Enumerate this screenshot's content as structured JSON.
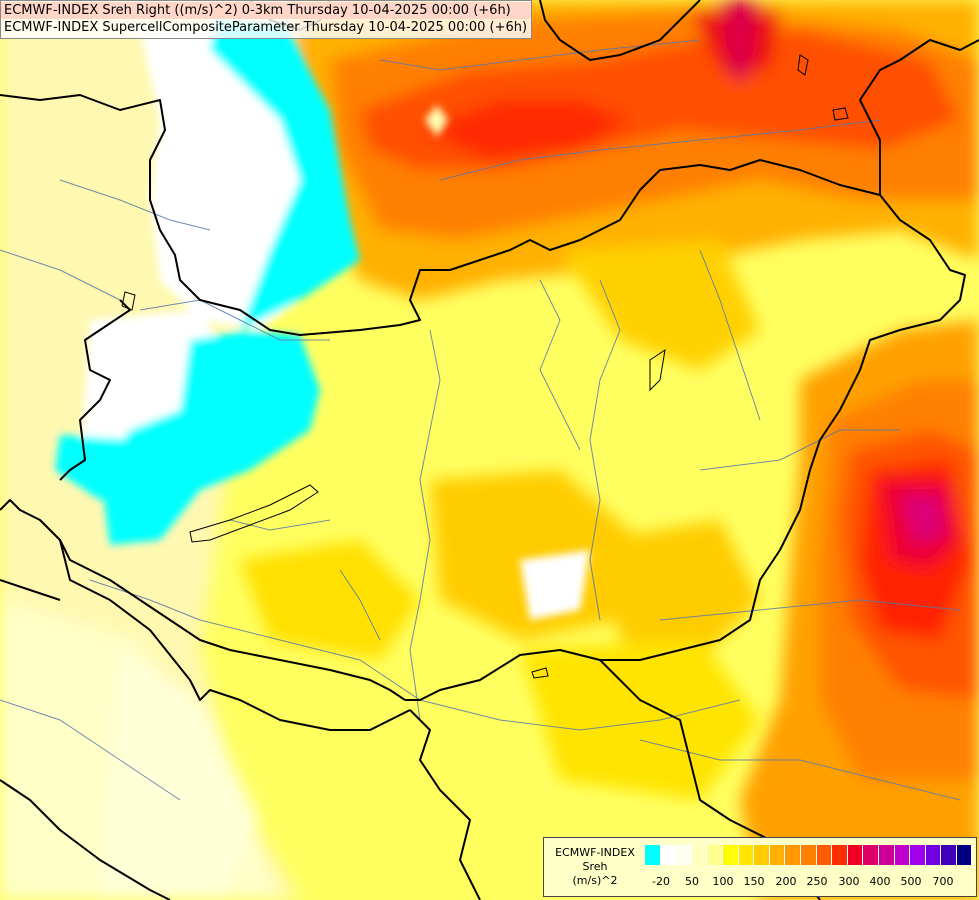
{
  "titles": {
    "line1": "ECMWF-INDEX Sreh Right ((m/s)^2) 0-3km Thursday 10-04-2025 00:00 (+6h)",
    "line2": "ECMWF-INDEX SupercellCompositeParameter Thursday 10-04-2025 00:00 (+6h)"
  },
  "legend": {
    "line1": "ECMWF-INDEX",
    "line2": "Sreh",
    "line3": "(m/s)^2",
    "colors": [
      "#00ffff",
      "#ffffff",
      "#fffff0",
      "#ffffc0",
      "#ffff90",
      "#ffff00",
      "#ffe600",
      "#ffcc00",
      "#ffb000",
      "#ff9800",
      "#ff7f00",
      "#ff5a00",
      "#ff2f00",
      "#ee0022",
      "#dd0066",
      "#cc0099",
      "#c000cc",
      "#a000ee",
      "#7000dd",
      "#4000bb",
      "#000080"
    ],
    "ticks": [
      "-20",
      "50",
      "100",
      "150",
      "200",
      "250",
      "300",
      "400",
      "500",
      "700"
    ]
  }
}
